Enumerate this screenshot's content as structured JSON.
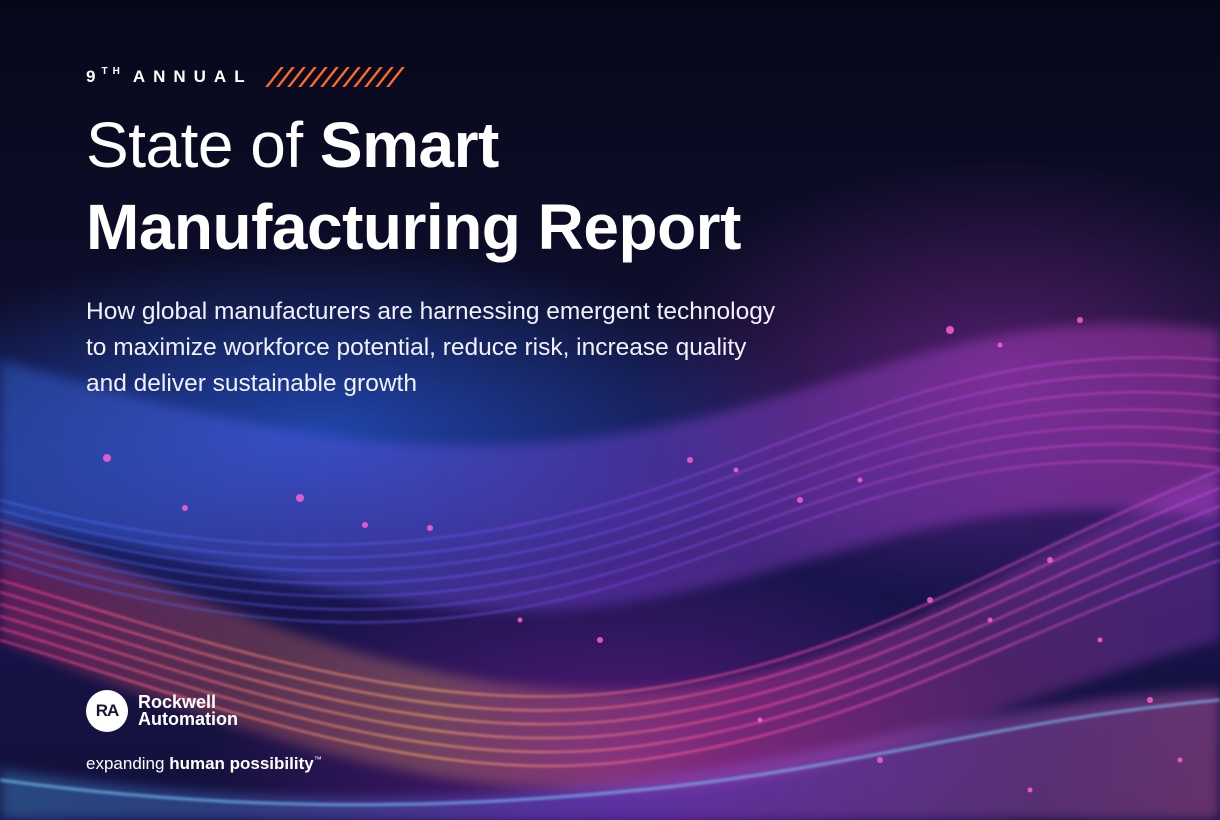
{
  "cover": {
    "eyebrow": {
      "number": "9",
      "suffix": "TH",
      "label": "ANNUAL",
      "accent_color": "#ff6a2b"
    },
    "title": {
      "line1_light": "State of ",
      "line1_bold": "Smart",
      "line2_bold": "Manufacturing Report"
    },
    "subtitle": "How global manufacturers are harnessing emergent technology to maximize workforce potential, reduce risk, increase quality and deliver sustainable growth",
    "brand": {
      "logo_initials": "RA",
      "name": "Rockwell Automation",
      "tagline_light": "expanding ",
      "tagline_bold": "human possibility",
      "tagline_mark": "™"
    },
    "background": {
      "description_icon": "abstract-wave-lines",
      "colors": [
        "#2a6bff",
        "#c04bd8",
        "#ff3d8b",
        "#ff9a3c"
      ]
    }
  }
}
